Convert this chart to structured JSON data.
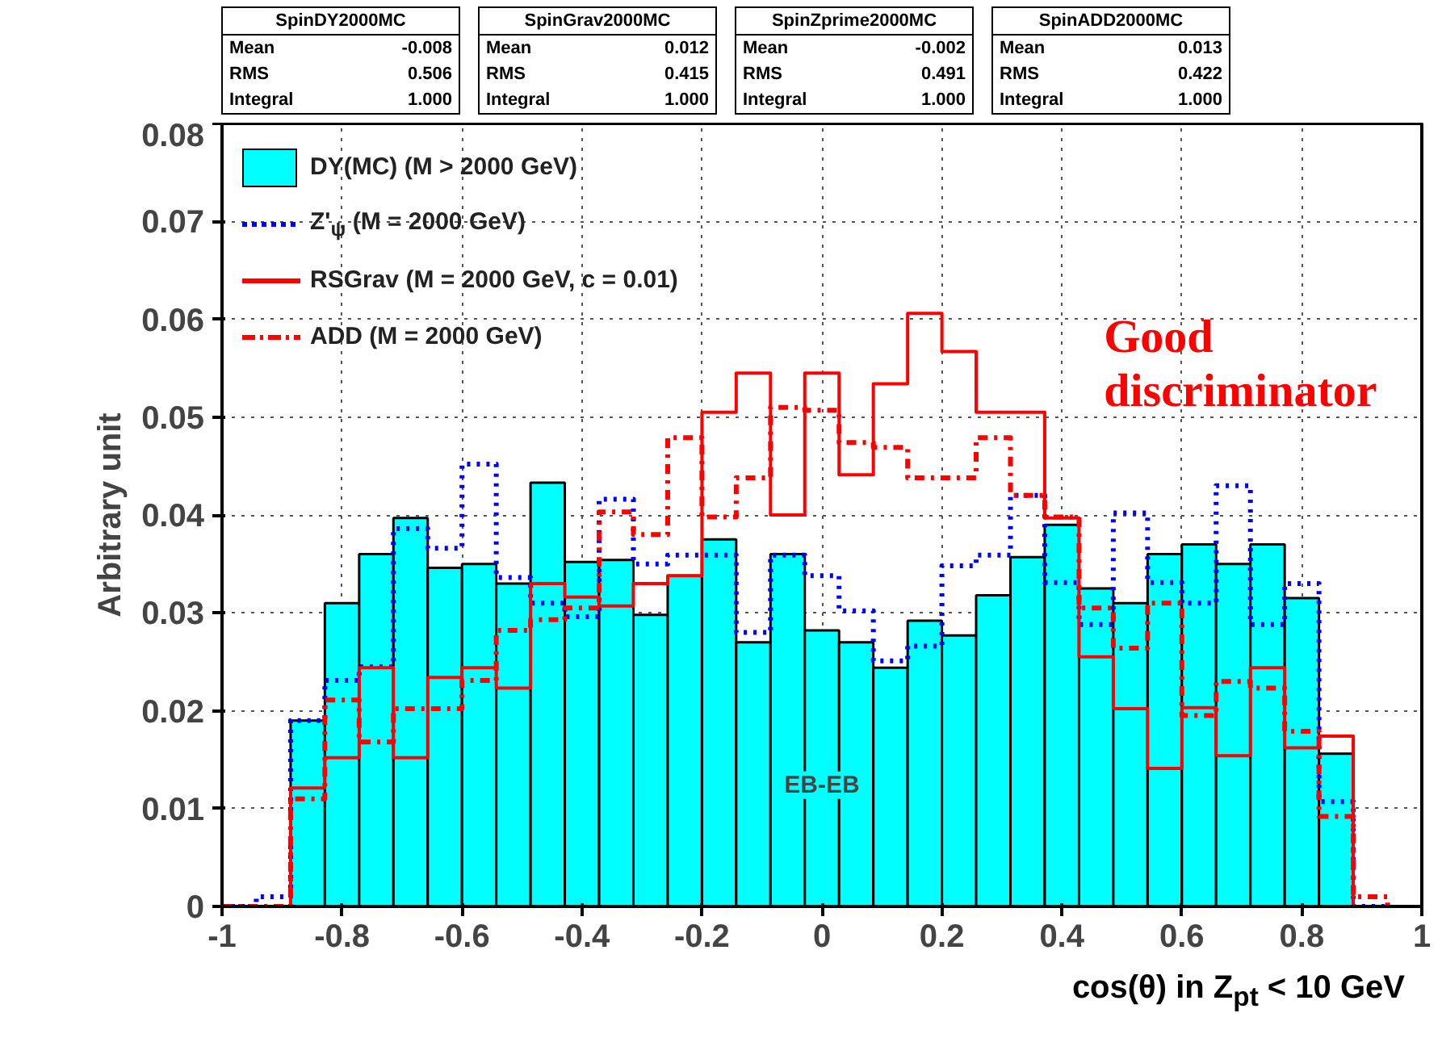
{
  "chart_data": {
    "type": "histogram",
    "xlabel": "cos(θ) in Z$_{pt}$ < 10 GeV",
    "ylabel": "Arbitrary unit",
    "bins": [
      -1,
      -0.9429,
      -0.8857,
      -0.8286,
      -0.7714,
      -0.7143,
      -0.6571,
      -0.6,
      -0.5429,
      -0.4857,
      -0.4286,
      -0.3714,
      -0.3143,
      -0.2571,
      -0.2,
      -0.1429,
      -0.0857,
      -0.0286,
      0.0286,
      0.0857,
      0.1429,
      0.2,
      0.2571,
      0.3143,
      0.3714,
      0.4286,
      0.4857,
      0.5429,
      0.6,
      0.6571,
      0.7143,
      0.7714,
      0.8286,
      0.8857,
      0.9429,
      1
    ],
    "series": [
      {
        "name": "DY(MC) (M > 2000 GeV)",
        "color": "#00ffff",
        "values": [
          0,
          0,
          0.019,
          0.031,
          0.036,
          0.0397,
          0.0346,
          0.035,
          0.033,
          0.0433,
          0.0352,
          0.0354,
          0.0298,
          0.0338,
          0.0375,
          0.027,
          0.036,
          0.0282,
          0.027,
          0.0244,
          0.0292,
          0.0277,
          0.0318,
          0.0357,
          0.039,
          0.0325,
          0.031,
          0.036,
          0.037,
          0.035,
          0.037,
          0.0315,
          0.0156,
          0,
          0
        ]
      },
      {
        "name": "Z'$_{ψ}$ (M = 2000 GeV)",
        "type": "step",
        "x": [
          -1,
          -0.9429,
          -0.8857,
          -0.8286,
          -0.7714,
          -0.7143,
          -0.6571,
          -0.6,
          -0.5429,
          -0.4857,
          -0.4286,
          -0.3714,
          -0.3143,
          -0.2571,
          -0.2,
          -0.1429,
          -0.0857,
          -0.0286,
          0.0286,
          0.0857,
          0.1429,
          0.2,
          0.2571,
          0.3143,
          0.3714,
          0.4286,
          0.4857,
          0.5429,
          0.6,
          0.6571,
          0.7143,
          0.7714,
          0.8286,
          0.8857,
          0.9429
        ],
        "color": "#0000ff",
        "line_style": "dotted",
        "values": [
          0,
          0.001,
          0.019,
          0.0231,
          0.0245,
          0.0386,
          0.0366,
          0.0452,
          0.0336,
          0.031,
          0.0296,
          0.0416,
          0.035,
          0.0359,
          0.0359,
          0.028,
          0.0359,
          0.0338,
          0.0302,
          0.0251,
          0.0266,
          0.0348,
          0.0359,
          0.042,
          0.0331,
          0.0288,
          0.0402,
          0.0331,
          0.031,
          0.043,
          0.0288,
          0.033,
          0.0107,
          0,
          0
        ]
      },
      {
        "name": "RSGrav (M = 2000 GeV, c = 0.01)",
        "type": "step",
        "x": [
          -1,
          -0.9429,
          -0.8857,
          -0.8286,
          -0.7714,
          -0.7143,
          -0.6571,
          -0.6,
          -0.5429,
          -0.4857,
          -0.4286,
          -0.3714,
          -0.3143,
          -0.2571,
          -0.2,
          -0.1429,
          -0.0857,
          -0.0286,
          0.0286,
          0.0857,
          0.1429,
          0.2,
          0.2571,
          0.3143,
          0.3714,
          0.4286,
          0.4857,
          0.5429,
          0.6,
          0.6571,
          0.7143,
          0.7714,
          0.8286,
          0.8857,
          0.9429
        ],
        "color": "#ff0000",
        "line_style": "solid",
        "values": [
          0,
          0,
          0.0121,
          0.0152,
          0.0244,
          0.0152,
          0.0234,
          0.0244,
          0.0223,
          0.033,
          0.0316,
          0.0307,
          0.033,
          0.0338,
          0.0505,
          0.0545,
          0.04,
          0.0545,
          0.0441,
          0.0534,
          0.0606,
          0.0567,
          0.0505,
          0.0505,
          0.0397,
          0.0255,
          0.0202,
          0.0141,
          0.0203,
          0.0154,
          0.0244,
          0.0162,
          0.0174,
          0,
          0
        ]
      },
      {
        "name": "ADD (M = 2000 GeV)",
        "type": "step",
        "x": [
          -1,
          -0.9429,
          -0.8857,
          -0.8286,
          -0.7714,
          -0.7143,
          -0.6571,
          -0.6,
          -0.5429,
          -0.4857,
          -0.4286,
          -0.3714,
          -0.3143,
          -0.2571,
          -0.2,
          -0.1429,
          -0.0857,
          -0.0286,
          0.0286,
          0.0857,
          0.1429,
          0.2,
          0.2571,
          0.3143,
          0.3714,
          0.4286,
          0.4857,
          0.5429,
          0.6,
          0.6571,
          0.7143,
          0.7714,
          0.8286,
          0.8857,
          0.9429
        ],
        "color": "#ff0000",
        "line_style": "dashdot",
        "values": [
          0,
          0,
          0.011,
          0.0211,
          0.0168,
          0.0202,
          0.0202,
          0.0231,
          0.0282,
          0.0293,
          0.0305,
          0.0403,
          0.038,
          0.0479,
          0.0398,
          0.0438,
          0.051,
          0.0507,
          0.0474,
          0.0469,
          0.0438,
          0.0438,
          0.0479,
          0.042,
          0.0398,
          0.0305,
          0.0264,
          0.031,
          0.0195,
          0.023,
          0.0223,
          0.0179,
          0.0092,
          0.001,
          0
        ]
      }
    ],
    "xlim": [
      -1,
      1
    ],
    "ylim": [
      0,
      0.08
    ],
    "xticks": [
      -1,
      -0.8,
      -0.6,
      -0.4,
      -0.2,
      0,
      0.2,
      0.4,
      0.6,
      0.8,
      1
    ],
    "yticks": [
      0,
      0.01,
      0.02,
      0.03,
      0.04,
      0.05,
      0.06,
      0.07,
      0.08
    ],
    "grid": true,
    "legend": "top left",
    "annotations": [
      "SpinDY2000MC",
      "Mean -0.008",
      "RMS 0.506",
      "Integral 1.000",
      "SpinGrav2000MC",
      "Mean 0.012",
      "RMS 0.415",
      "Integral 1.000",
      "SpinZprime2000MC",
      "Mean -0.002",
      "RMS 0.491",
      "Integral 1.000",
      "SpinADD2000MC",
      "Mean 0.013",
      "RMS 0.422",
      "Integral 1.000",
      "EB-EB",
      "Good discriminator"
    ]
  }
}
